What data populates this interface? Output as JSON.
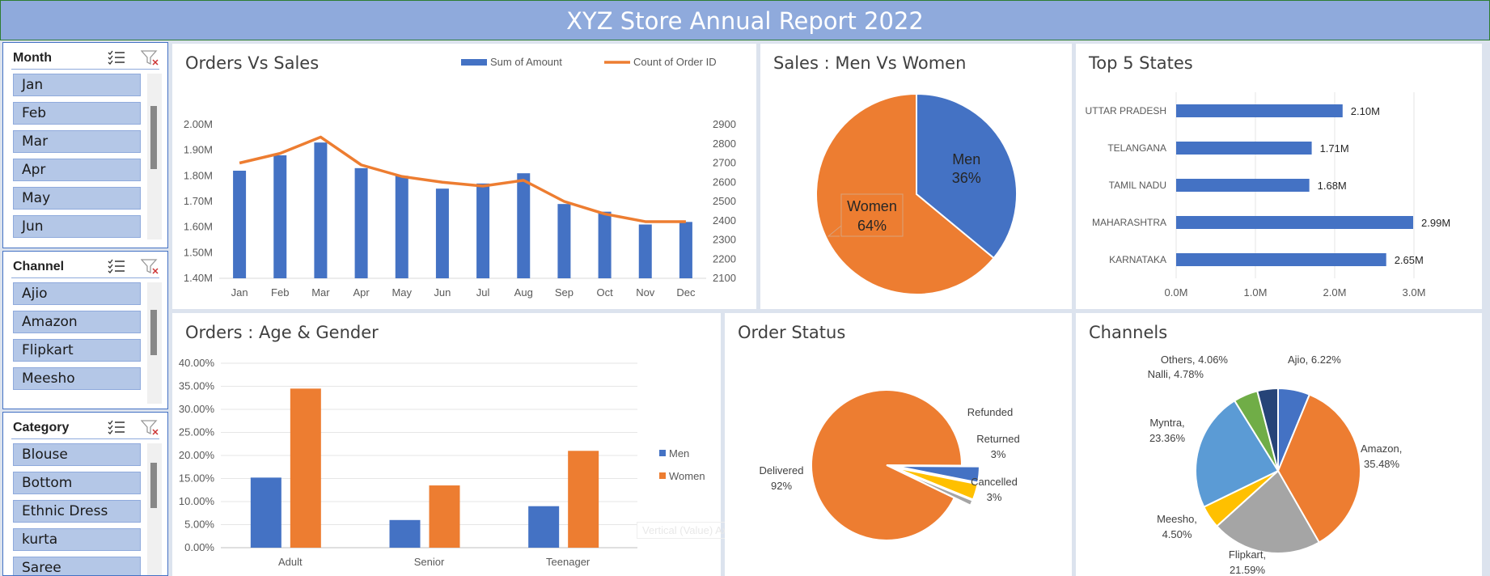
{
  "report_title": "XYZ Store Annual Report 2022",
  "slicers": {
    "month": {
      "title": "Month",
      "items": [
        "Jan",
        "Feb",
        "Mar",
        "Apr",
        "May",
        "Jun"
      ]
    },
    "channel": {
      "title": "Channel",
      "items": [
        "Ajio",
        "Amazon",
        "Flipkart",
        "Meesho"
      ]
    },
    "category": {
      "title": "Category",
      "items": [
        "Blouse",
        "Bottom",
        "Ethnic Dress",
        "kurta",
        "Saree"
      ]
    }
  },
  "tooltip_text": "Vertical (Value) Axis Major Gridlines",
  "charts": {
    "orders_vs_sales": {
      "title": "Orders Vs Sales"
    },
    "men_vs_women": {
      "title": "Sales : Men Vs Women"
    },
    "top_states": {
      "title": "Top 5 States"
    },
    "age_gender": {
      "title": "Orders : Age & Gender"
    },
    "order_status": {
      "title": "Order Status"
    },
    "channels": {
      "title": "Channels"
    }
  },
  "colors": {
    "blue": "#4472c4",
    "orange": "#ed7d31",
    "gray": "#a5a5a5",
    "yellow": "#ffc000",
    "light_blue": "#5b9bd5",
    "green": "#70ad47",
    "navy": "#264478",
    "header": "#8faadc"
  },
  "chart_data": [
    {
      "id": "orders_vs_sales",
      "type": "bar+line",
      "title": "Orders Vs Sales",
      "categories": [
        "Jan",
        "Feb",
        "Mar",
        "Apr",
        "May",
        "Jun",
        "Jul",
        "Aug",
        "Sep",
        "Oct",
        "Nov",
        "Dec"
      ],
      "series": [
        {
          "name": "Sum of Amount",
          "type": "bar",
          "axis": "left",
          "color": "#4472c4",
          "values": [
            1.82,
            1.88,
            1.93,
            1.83,
            1.8,
            1.75,
            1.77,
            1.81,
            1.69,
            1.66,
            1.61,
            1.62
          ]
        },
        {
          "name": "Count of Order ID",
          "type": "line",
          "axis": "right",
          "color": "#ed7d31",
          "values": [
            2700,
            2750,
            2835,
            2690,
            2630,
            2600,
            2580,
            2610,
            2500,
            2435,
            2395,
            2395
          ]
        }
      ],
      "yticks_left": [
        "1.40M",
        "1.50M",
        "1.60M",
        "1.70M",
        "1.80M",
        "1.90M",
        "2.00M"
      ],
      "ylim_left": [
        1.4,
        2.0
      ],
      "yticks_right": [
        "2100",
        "2200",
        "2300",
        "2400",
        "2500",
        "2600",
        "2700",
        "2800",
        "2900"
      ],
      "ylim_right": [
        2100,
        2900
      ],
      "legend": "top-right"
    },
    {
      "id": "men_vs_women",
      "type": "pie",
      "title": "Sales : Men Vs Women",
      "slices": [
        {
          "label": "Men",
          "pct_label": "36%",
          "value": 36,
          "color": "#4472c4"
        },
        {
          "label": "Women",
          "pct_label": "64%",
          "value": 64,
          "color": "#ed7d31"
        }
      ]
    },
    {
      "id": "top_states",
      "type": "bar",
      "orientation": "horizontal",
      "title": "Top 5 States",
      "categories": [
        "UTTAR PRADESH",
        "TELANGANA",
        "TAMIL NADU",
        "MAHARASHTRA",
        "KARNATAKA"
      ],
      "values": [
        2.1,
        1.71,
        1.68,
        2.99,
        2.65
      ],
      "value_labels": [
        "2.10M",
        "1.71M",
        "1.68M",
        "2.99M",
        "2.65M"
      ],
      "xticks": [
        "0.0M",
        "1.0M",
        "2.0M",
        "3.0M"
      ],
      "xlim": [
        0,
        3
      ],
      "grid": true
    },
    {
      "id": "age_gender",
      "type": "bar",
      "title": "Orders : Age & Gender",
      "categories": [
        "Adult",
        "Senior",
        "Teenager"
      ],
      "series": [
        {
          "name": "Men",
          "color": "#4472c4",
          "values": [
            15.2,
            6.0,
            9.0
          ]
        },
        {
          "name": "Women",
          "color": "#ed7d31",
          "values": [
            34.5,
            13.5,
            21.0
          ]
        }
      ],
      "yticks": [
        "0.00%",
        "5.00%",
        "10.00%",
        "15.00%",
        "20.00%",
        "25.00%",
        "30.00%",
        "35.00%",
        "40.00%"
      ],
      "ylim": [
        0,
        40
      ],
      "legend": "right",
      "grid": true
    },
    {
      "id": "order_status",
      "type": "pie",
      "title": "Order Status",
      "slices": [
        {
          "label": "Delivered",
          "pct_label": "92%",
          "value": 92,
          "color": "#ed7d31"
        },
        {
          "label": "Cancelled",
          "pct_label": "3%",
          "value": 3,
          "color": "#4472c4"
        },
        {
          "label": "Returned",
          "pct_label": "3%",
          "value": 3,
          "color": "#ffc000"
        },
        {
          "label": "Refunded",
          "pct_label": "",
          "value": 1,
          "color": "#a5a5a5"
        }
      ]
    },
    {
      "id": "channels",
      "type": "pie",
      "title": "Channels",
      "slices": [
        {
          "label": "Ajio",
          "pct_label": "6.22%",
          "value": 6.22,
          "color": "#4472c4"
        },
        {
          "label": "Amazon",
          "pct_label": "35.48%",
          "value": 35.48,
          "color": "#ed7d31"
        },
        {
          "label": "Flipkart",
          "pct_label": "21.59%",
          "value": 21.59,
          "color": "#a5a5a5"
        },
        {
          "label": "Meesho",
          "pct_label": "4.50%",
          "value": 4.5,
          "color": "#ffc000"
        },
        {
          "label": "Myntra",
          "pct_label": "23.36%",
          "value": 23.36,
          "color": "#5b9bd5"
        },
        {
          "label": "Nalli",
          "pct_label": "4.78%",
          "value": 4.78,
          "color": "#70ad47"
        },
        {
          "label": "Others",
          "pct_label": "4.06%",
          "value": 4.06,
          "color": "#264478"
        }
      ]
    }
  ]
}
